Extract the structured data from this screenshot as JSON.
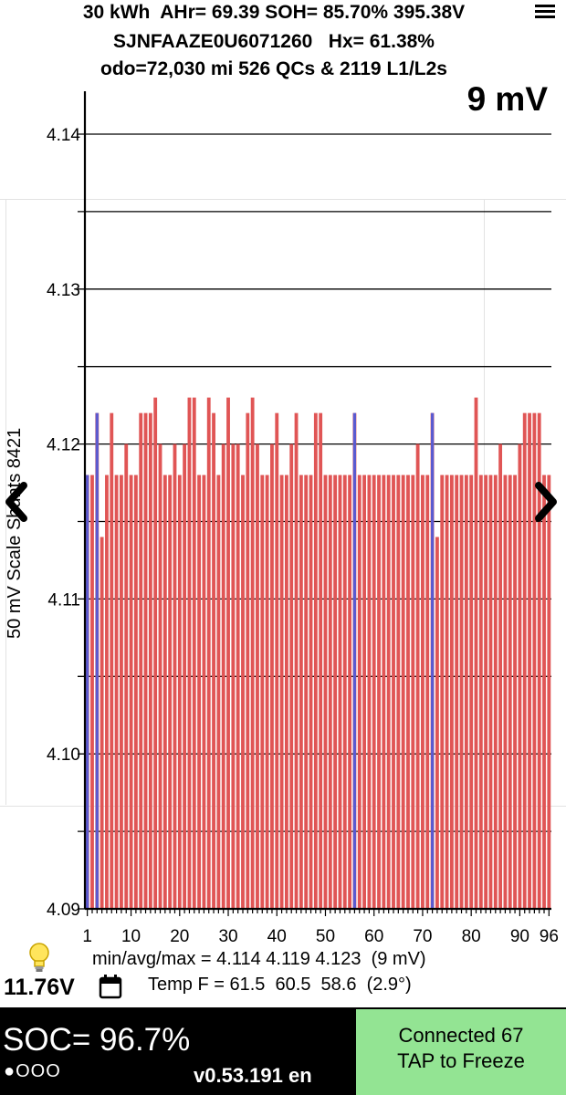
{
  "header": {
    "line1": "30 kWh  AHr= 69.39 SOH= 85.70% 395.38V",
    "line2": "SJNFAAZE0U6071260   Hx= 61.38%",
    "line3": "odo=72,030 mi 526 QCs & 2119 L1/L2s",
    "spread": "9 mV"
  },
  "menu_icon": "hamburger-menu-icon",
  "chart_data": {
    "type": "bar",
    "ylabel": "50 mV Scale Shunts 8421",
    "ylim": [
      4.09,
      4.14
    ],
    "ytick_labels": [
      "4.09",
      "4.10",
      "4.11",
      "4.12",
      "4.13",
      "4.14"
    ],
    "xtick_labels": [
      "1",
      "10",
      "20",
      "30",
      "40",
      "50",
      "60",
      "70",
      "80",
      "90",
      "96"
    ],
    "grid": true,
    "series": [
      {
        "color": "#e05555",
        "values": [
          4.118,
          4.118,
          4.122,
          4.114,
          4.118,
          4.122,
          4.118,
          4.118,
          4.12,
          4.118,
          4.118,
          4.122,
          4.122,
          4.122,
          4.123,
          4.12,
          4.118,
          4.118,
          4.12,
          4.118,
          4.12,
          4.123,
          4.123,
          4.118,
          4.118,
          4.123,
          4.122,
          4.118,
          4.12,
          4.123,
          4.12,
          4.12,
          4.118,
          4.122,
          4.123,
          4.12,
          4.118,
          4.118,
          4.12,
          4.122,
          4.118,
          4.118,
          4.12,
          4.122,
          4.118,
          4.118,
          4.118,
          4.122,
          4.122,
          4.118,
          4.118,
          4.118,
          4.118,
          4.118,
          4.118,
          4.122,
          4.118,
          4.118,
          4.118,
          4.118,
          4.118,
          4.118,
          4.118,
          4.118,
          4.118,
          4.118,
          4.118,
          4.118,
          4.12,
          4.118,
          4.118,
          4.122,
          4.114,
          4.118,
          4.118,
          4.118,
          4.118,
          4.118,
          4.118,
          4.118,
          4.123,
          4.118,
          4.118,
          4.118,
          4.118,
          4.12,
          4.118,
          4.118,
          4.118,
          4.12,
          4.122,
          4.122,
          4.122,
          4.122,
          4.118,
          4.118
        ]
      }
    ],
    "shunt_cells": [
      1,
      3,
      56,
      72
    ],
    "shunt_color": "#5a5ad0"
  },
  "stats": {
    "minavgmax": "min/avg/max = 4.114 4.119 4.123  (9 mV)",
    "temps": "Temp F = 61.5  60.5  58.6  (2.9°)",
    "aux_voltage": "11.76V"
  },
  "bottom": {
    "soc": "SOC= 96.7%",
    "dots": "●OOO",
    "version": "v0.53.191 en",
    "status_line1": "Connected 67",
    "status_line2": "TAP to Freeze"
  },
  "colors": {
    "bar": "#e05555",
    "shunt": "#5a5ad0",
    "status_bg": "#93e493",
    "bottom_bg": "#000000"
  }
}
